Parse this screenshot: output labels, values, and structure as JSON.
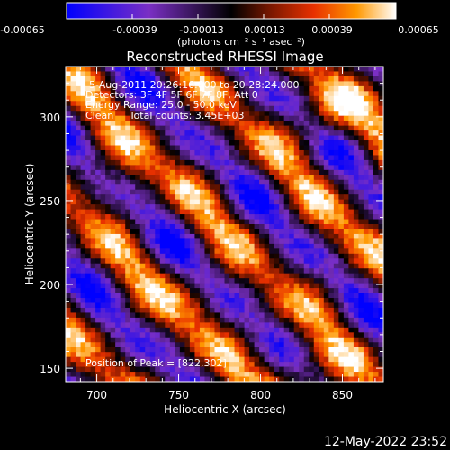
{
  "chart_data": {
    "type": "heatmap",
    "title": "Reconstructed RHESSI Image",
    "colorbar": {
      "ticks": [
        "-0.00065",
        "-0.00039",
        "-0.00013",
        "0.00013",
        "0.00039",
        "0.00065"
      ],
      "unit_label": "(photons cm⁻² s⁻¹ asec⁻²)",
      "range": [
        -0.00065,
        0.00065
      ],
      "colors": [
        "#0000ff",
        "#7a2fc4",
        "#000000",
        "#7a1800",
        "#e83000",
        "#ff9800",
        "#ffffff"
      ]
    },
    "annotations": [
      "5-Aug-2011 20:26:16.000 to 20:28:24.000",
      "Detectors: 3F 4F 5F 6F 7F 8F, Att 0",
      "Energy Range: 25.0 - 50.0 keV",
      "Clean     Total counts: 3.45E+03"
    ],
    "peak_label": "Position of Peak = [822,302]",
    "xlabel": "Heliocentric X (arcsec)",
    "ylabel": "Heliocentric Y (arcsec)",
    "xlim": [
      681,
      875
    ],
    "ylim": [
      142,
      330
    ],
    "x_ticks": [
      700,
      750,
      800,
      850
    ],
    "y_ticks": [
      150,
      200,
      250,
      300
    ],
    "peak": [
      822,
      302
    ],
    "structure": "diagonal bands of emission running from upper-left to lower-right; positive (orange/yellow) bands alternate with negative (purple/blue) bands; brightest at top-right and bottom-center"
  },
  "footer": {
    "timestamp": "12-May-2022 23:52"
  }
}
